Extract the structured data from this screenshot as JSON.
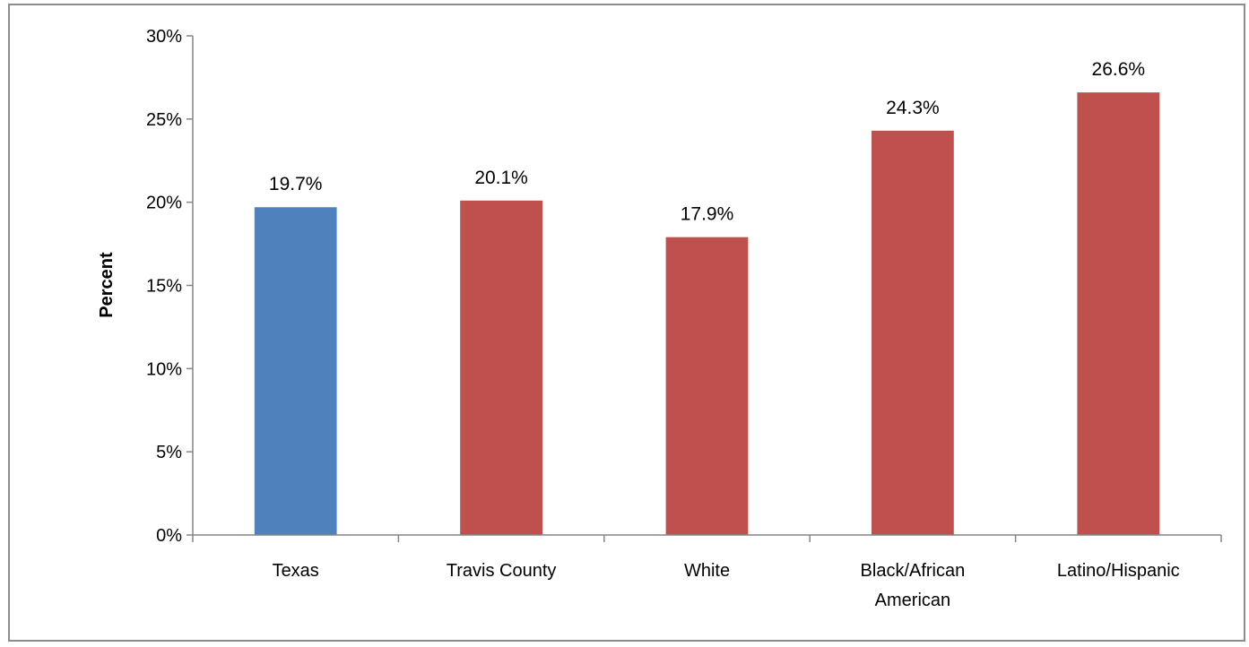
{
  "chart_data": {
    "type": "bar",
    "title": "",
    "xlabel": "",
    "ylabel": "Percent",
    "ylim": [
      0,
      30
    ],
    "y_tick_step": 5,
    "y_tick_format": "percent",
    "grid": false,
    "legend": "none",
    "categories": [
      [
        "Texas"
      ],
      [
        "Travis County"
      ],
      [
        "White"
      ],
      [
        "Black/African",
        "American"
      ],
      [
        "Latino/Hispanic"
      ]
    ],
    "values": [
      19.7,
      20.1,
      17.9,
      24.3,
      26.6
    ],
    "data_labels": [
      "19.7%",
      "20.1%",
      "17.9%",
      "24.3%",
      "26.6%"
    ],
    "bar_colors": [
      "#4F81BD",
      "#C0504D",
      "#C0504D",
      "#C0504D",
      "#C0504D"
    ]
  }
}
